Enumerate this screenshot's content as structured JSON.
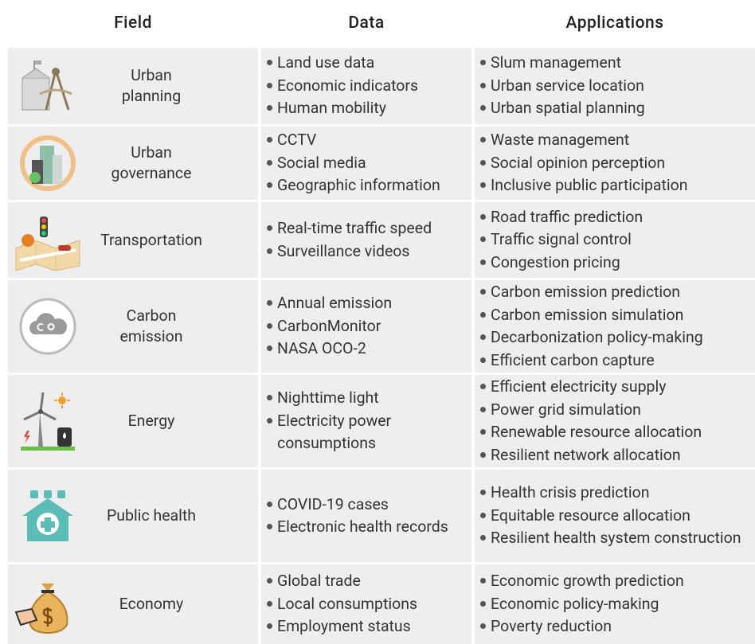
{
  "header": {
    "field": "Field",
    "data": "Data",
    "applications": "Applications"
  },
  "rows": [
    {
      "field": [
        "Urban",
        "planning"
      ],
      "data": [
        "Land use data",
        "Economic indicators",
        "Human mobility"
      ],
      "applications": [
        "Slum management",
        "Urban service location",
        "Urban spatial planning"
      ]
    },
    {
      "field": [
        "Urban",
        "governance"
      ],
      "data": [
        "CCTV",
        "Social media",
        "Geographic information"
      ],
      "applications": [
        "Waste management",
        "Social opinion perception",
        "Inclusive public participation"
      ]
    },
    {
      "field": [
        "Transportation"
      ],
      "data": [
        "Real-time traffic speed",
        "Surveillance videos"
      ],
      "applications": [
        "Road traffic prediction",
        "Traffic signal control",
        "Congestion pricing"
      ]
    },
    {
      "field": [
        "Carbon emission"
      ],
      "data": [
        "Annual emission",
        "CarbonMonitor",
        "NASA OCO-2"
      ],
      "applications": [
        "Carbon emission prediction",
        "Carbon emission simulation",
        "Decarbonization policy-making",
        "Efficient carbon capture"
      ]
    },
    {
      "field": [
        "Energy"
      ],
      "data": [
        "Nighttime light",
        "Electricity power consumptions"
      ],
      "applications": [
        "Efficient electricity supply",
        "Power grid simulation",
        "Renewable resource allocation",
        "Resilient network allocation"
      ]
    },
    {
      "field": [
        "Public health"
      ],
      "data": [
        "COVID-19 cases",
        "Electronic health records"
      ],
      "applications": [
        "Health crisis prediction",
        "Equitable resource allocation",
        "Resilient health system construction"
      ]
    },
    {
      "field": [
        "Economy"
      ],
      "data": [
        "Global trade",
        "Local consumptions",
        "Employment status"
      ],
      "applications": [
        "Economic growth prediction",
        "Economic policy-making",
        "Poverty reduction"
      ]
    }
  ]
}
